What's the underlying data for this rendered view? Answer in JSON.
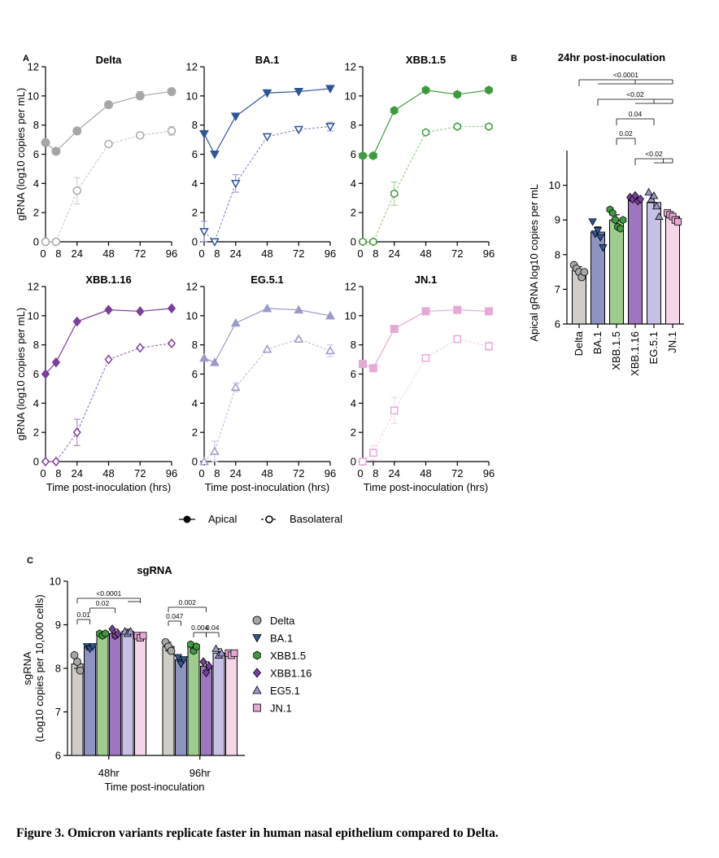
{
  "caption": "Figure 3. Omicron variants replicate faster in human nasal epithelium compared to Delta.",
  "panel_letters": [
    "A",
    "B",
    "C"
  ],
  "legend_a": {
    "apical": "Apical",
    "basolateral": "Basolateral"
  },
  "colors": {
    "Delta": "#a6a6a6",
    "BA.1": "#2f5597",
    "XBB.1.5": "#3f9a3f",
    "XBB.1.16": "#7a3f9e",
    "EG.5.1": "#9b98cc",
    "JN.1": "#e6a9d6"
  },
  "bar_fills": {
    "Delta": "#d0ccc8",
    "BA.1": "#8e93c2",
    "XBB.1.5": "#9fcb8e",
    "XBB.1.16": "#9e76c0",
    "EG.5.1": "#c6c1e4",
    "JN.1": "#f5d5e8"
  },
  "chart_data": [
    {
      "id": "A",
      "type": "line",
      "xlabel": "Time post-inoculation (hrs)",
      "ylabel": "gRNA (log10 copies per mL)",
      "ylim": [
        0,
        12
      ],
      "x_ticks": [
        0,
        8,
        24,
        48,
        72,
        96
      ],
      "y_ticks": [
        0,
        2,
        4,
        6,
        8,
        10,
        12
      ],
      "panels": [
        {
          "title": "Delta",
          "color_key": "Delta",
          "marker": "circle",
          "x": [
            0,
            8,
            24,
            48,
            72,
            96
          ],
          "apical": [
            6.8,
            6.2,
            7.6,
            9.4,
            10.0,
            10.3
          ],
          "apical_err": [
            0,
            0,
            0,
            0.1,
            0.3,
            0.1
          ],
          "basolateral": [
            0,
            0,
            3.5,
            6.7,
            7.3,
            7.6
          ],
          "basolateral_err": [
            0,
            0,
            0.9,
            0,
            0.1,
            0.3
          ]
        },
        {
          "title": "BA.1",
          "color_key": "BA.1",
          "marker": "triangle-down",
          "x": [
            0,
            8,
            24,
            48,
            72,
            96
          ],
          "apical": [
            7.4,
            6.0,
            8.6,
            10.2,
            10.3,
            10.5
          ],
          "apical_err": [
            0,
            0,
            0,
            0,
            0,
            0.1
          ],
          "basolateral": [
            0.7,
            0,
            4.0,
            7.2,
            7.7,
            7.9
          ],
          "basolateral_err": [
            0.7,
            0,
            0.6,
            0,
            0.1,
            0.3
          ]
        },
        {
          "title": "XBB.1.5",
          "color_key": "XBB.1.5",
          "marker": "hexagon",
          "x": [
            0,
            8,
            24,
            48,
            72,
            96
          ],
          "apical": [
            5.9,
            5.9,
            9.0,
            10.4,
            10.1,
            10.4
          ],
          "apical_err": [
            0,
            0,
            0,
            0,
            0,
            0
          ],
          "basolateral": [
            0,
            0,
            3.3,
            7.5,
            7.9,
            7.9
          ],
          "basolateral_err": [
            0,
            0,
            0.8,
            0,
            0,
            0
          ]
        },
        {
          "title": "XBB.1.16",
          "color_key": "XBB.1.16",
          "marker": "diamond",
          "x": [
            0,
            8,
            24,
            48,
            72,
            96
          ],
          "apical": [
            6.0,
            6.8,
            9.6,
            10.4,
            10.3,
            10.5
          ],
          "apical_err": [
            0,
            0,
            0,
            0,
            0,
            0
          ],
          "basolateral": [
            0,
            0,
            2.0,
            7.0,
            7.8,
            8.1
          ],
          "basolateral_err": [
            0,
            0,
            0.9,
            0,
            0,
            0.1
          ]
        },
        {
          "title": "EG.5.1",
          "color_key": "EG.5.1",
          "marker": "triangle-up",
          "x": [
            0,
            8,
            24,
            48,
            72,
            96
          ],
          "apical": [
            7.1,
            6.8,
            9.5,
            10.5,
            10.4,
            10.0
          ],
          "apical_err": [
            0,
            0,
            0,
            0,
            0,
            0
          ],
          "basolateral": [
            0,
            0.7,
            5.1,
            7.7,
            8.4,
            7.6
          ],
          "basolateral_err": [
            0,
            0.7,
            0.3,
            0,
            0.1,
            0.4
          ]
        },
        {
          "title": "JN.1",
          "color_key": "JN.1",
          "marker": "square",
          "x": [
            0,
            8,
            24,
            48,
            72,
            96
          ],
          "apical": [
            6.7,
            6.4,
            9.1,
            10.3,
            10.4,
            10.3
          ],
          "apical_err": [
            0,
            0,
            0,
            0,
            0,
            0.1
          ],
          "basolateral": [
            0,
            0.6,
            3.5,
            7.1,
            8.4,
            7.9
          ],
          "basolateral_err": [
            0,
            0.5,
            0.9,
            0.1,
            0.1,
            0.3
          ]
        }
      ]
    },
    {
      "id": "B",
      "type": "bar",
      "title": "24hr post-inoculation",
      "ylabel": "Apical gRNA log10 copies per mL",
      "ylim": [
        6,
        11
      ],
      "y_ticks": [
        6,
        7,
        8,
        9,
        10
      ],
      "categories": [
        "Delta",
        "BA.1",
        "XBB.1.5",
        "XBB.1.16",
        "EG.5.1",
        "JN.1"
      ],
      "markers": [
        "circle",
        "triangle-down",
        "hexagon",
        "diamond",
        "triangle-up",
        "square"
      ],
      "values": [
        7.55,
        8.65,
        9.0,
        9.6,
        9.5,
        9.1
      ],
      "errors": [
        0.1,
        0.15,
        0.15,
        0.05,
        0.15,
        0.05
      ],
      "points": [
        [
          7.7,
          7.6,
          7.5,
          7.35,
          7.5
        ],
        [
          8.95,
          8.6,
          8.7,
          8.5,
          8.2
        ],
        [
          9.3,
          9.2,
          9.0,
          8.8,
          8.75,
          9.0
        ],
        [
          9.65,
          9.6,
          9.7,
          9.55,
          9.6
        ],
        [
          9.8,
          9.6,
          9.7,
          9.4,
          9.1
        ],
        [
          9.2,
          9.15,
          9.1,
          9.0,
          8.95
        ]
      ],
      "comparisons": [
        {
          "from": 0,
          "to": [
            1,
            2,
            3,
            4,
            5
          ],
          "label": "<0.0001"
        },
        {
          "from": 1,
          "to": [
            3,
            4,
            5
          ],
          "label": "<0.02"
        },
        {
          "from": 2,
          "to": [
            4
          ],
          "label": "0.04"
        },
        {
          "from": 2,
          "to": [
            3
          ],
          "label": "0.02"
        },
        {
          "from": 3,
          "to": [
            4,
            5
          ],
          "label": "<0.02"
        }
      ]
    },
    {
      "id": "C",
      "type": "bar",
      "title": "sgRNA",
      "xlabel": "Time post-inoculation",
      "ylabel": [
        "sgRNA",
        "(Log10 copies per 10,000 cells)"
      ],
      "ylim": [
        6,
        10
      ],
      "y_ticks": [
        6,
        7,
        8,
        9,
        10
      ],
      "categories": [
        "48hr",
        "96hr"
      ],
      "series": [
        {
          "name": "Delta",
          "marker": "circle",
          "values": [
            8.1,
            8.5
          ],
          "errors": [
            0.1,
            0.1
          ],
          "points": [
            [
              8.3,
              8.15,
              7.95
            ],
            [
              8.6,
              8.5,
              8.4
            ]
          ]
        },
        {
          "name": "BA.1",
          "marker": "triangle-down",
          "values": [
            8.5,
            8.2
          ],
          "errors": [
            0.05,
            0.05
          ],
          "points": [
            [
              8.5,
              8.45,
              8.5
            ],
            [
              8.25,
              8.1,
              8.2
            ]
          ]
        },
        {
          "name": "XBB1.5",
          "marker": "hexagon",
          "values": [
            8.8,
            8.5
          ],
          "errors": [
            0.05,
            0.05
          ],
          "points": [
            [
              8.8,
              8.75,
              8.8
            ],
            [
              8.55,
              8.4,
              8.5
            ]
          ]
        },
        {
          "name": "XBB1.16",
          "marker": "diamond",
          "values": [
            8.8,
            8.05
          ],
          "errors": [
            0.1,
            0.1
          ],
          "points": [
            [
              8.9,
              8.75,
              8.8
            ],
            [
              8.15,
              7.9,
              8.05
            ]
          ]
        },
        {
          "name": "EG5.1",
          "marker": "triangle-up",
          "values": [
            8.85,
            8.35
          ],
          "errors": [
            0.05,
            0.1
          ],
          "points": [
            [
              8.85,
              8.8,
              8.85
            ],
            [
              8.45,
              8.3,
              8.35
            ]
          ]
        },
        {
          "name": "JN.1",
          "marker": "square",
          "values": [
            8.75,
            8.35
          ],
          "errors": [
            0.05,
            0.03
          ],
          "points": [
            [
              8.75,
              8.7,
              8.75
            ],
            [
              8.35,
              8.3,
              8.35
            ]
          ]
        }
      ],
      "comparisons": [
        {
          "group": 0,
          "from": 0,
          "to": [
            4,
            5
          ],
          "label": "<0.0001"
        },
        {
          "group": 0,
          "from": 1,
          "to": [
            3
          ],
          "label": "0.02"
        },
        {
          "group": 0,
          "from": 0,
          "to": [
            1
          ],
          "label": "0.01"
        },
        {
          "group": 1,
          "from": 0,
          "to": [
            3
          ],
          "label": "0.002"
        },
        {
          "group": 1,
          "from": 0,
          "to": [
            1
          ],
          "label": "0.047"
        },
        {
          "group": 1,
          "from": 2,
          "to": [
            3
          ],
          "label": "0.004"
        },
        {
          "group": 1,
          "from": 3,
          "to": [
            4
          ],
          "label": "0.04"
        }
      ]
    }
  ]
}
